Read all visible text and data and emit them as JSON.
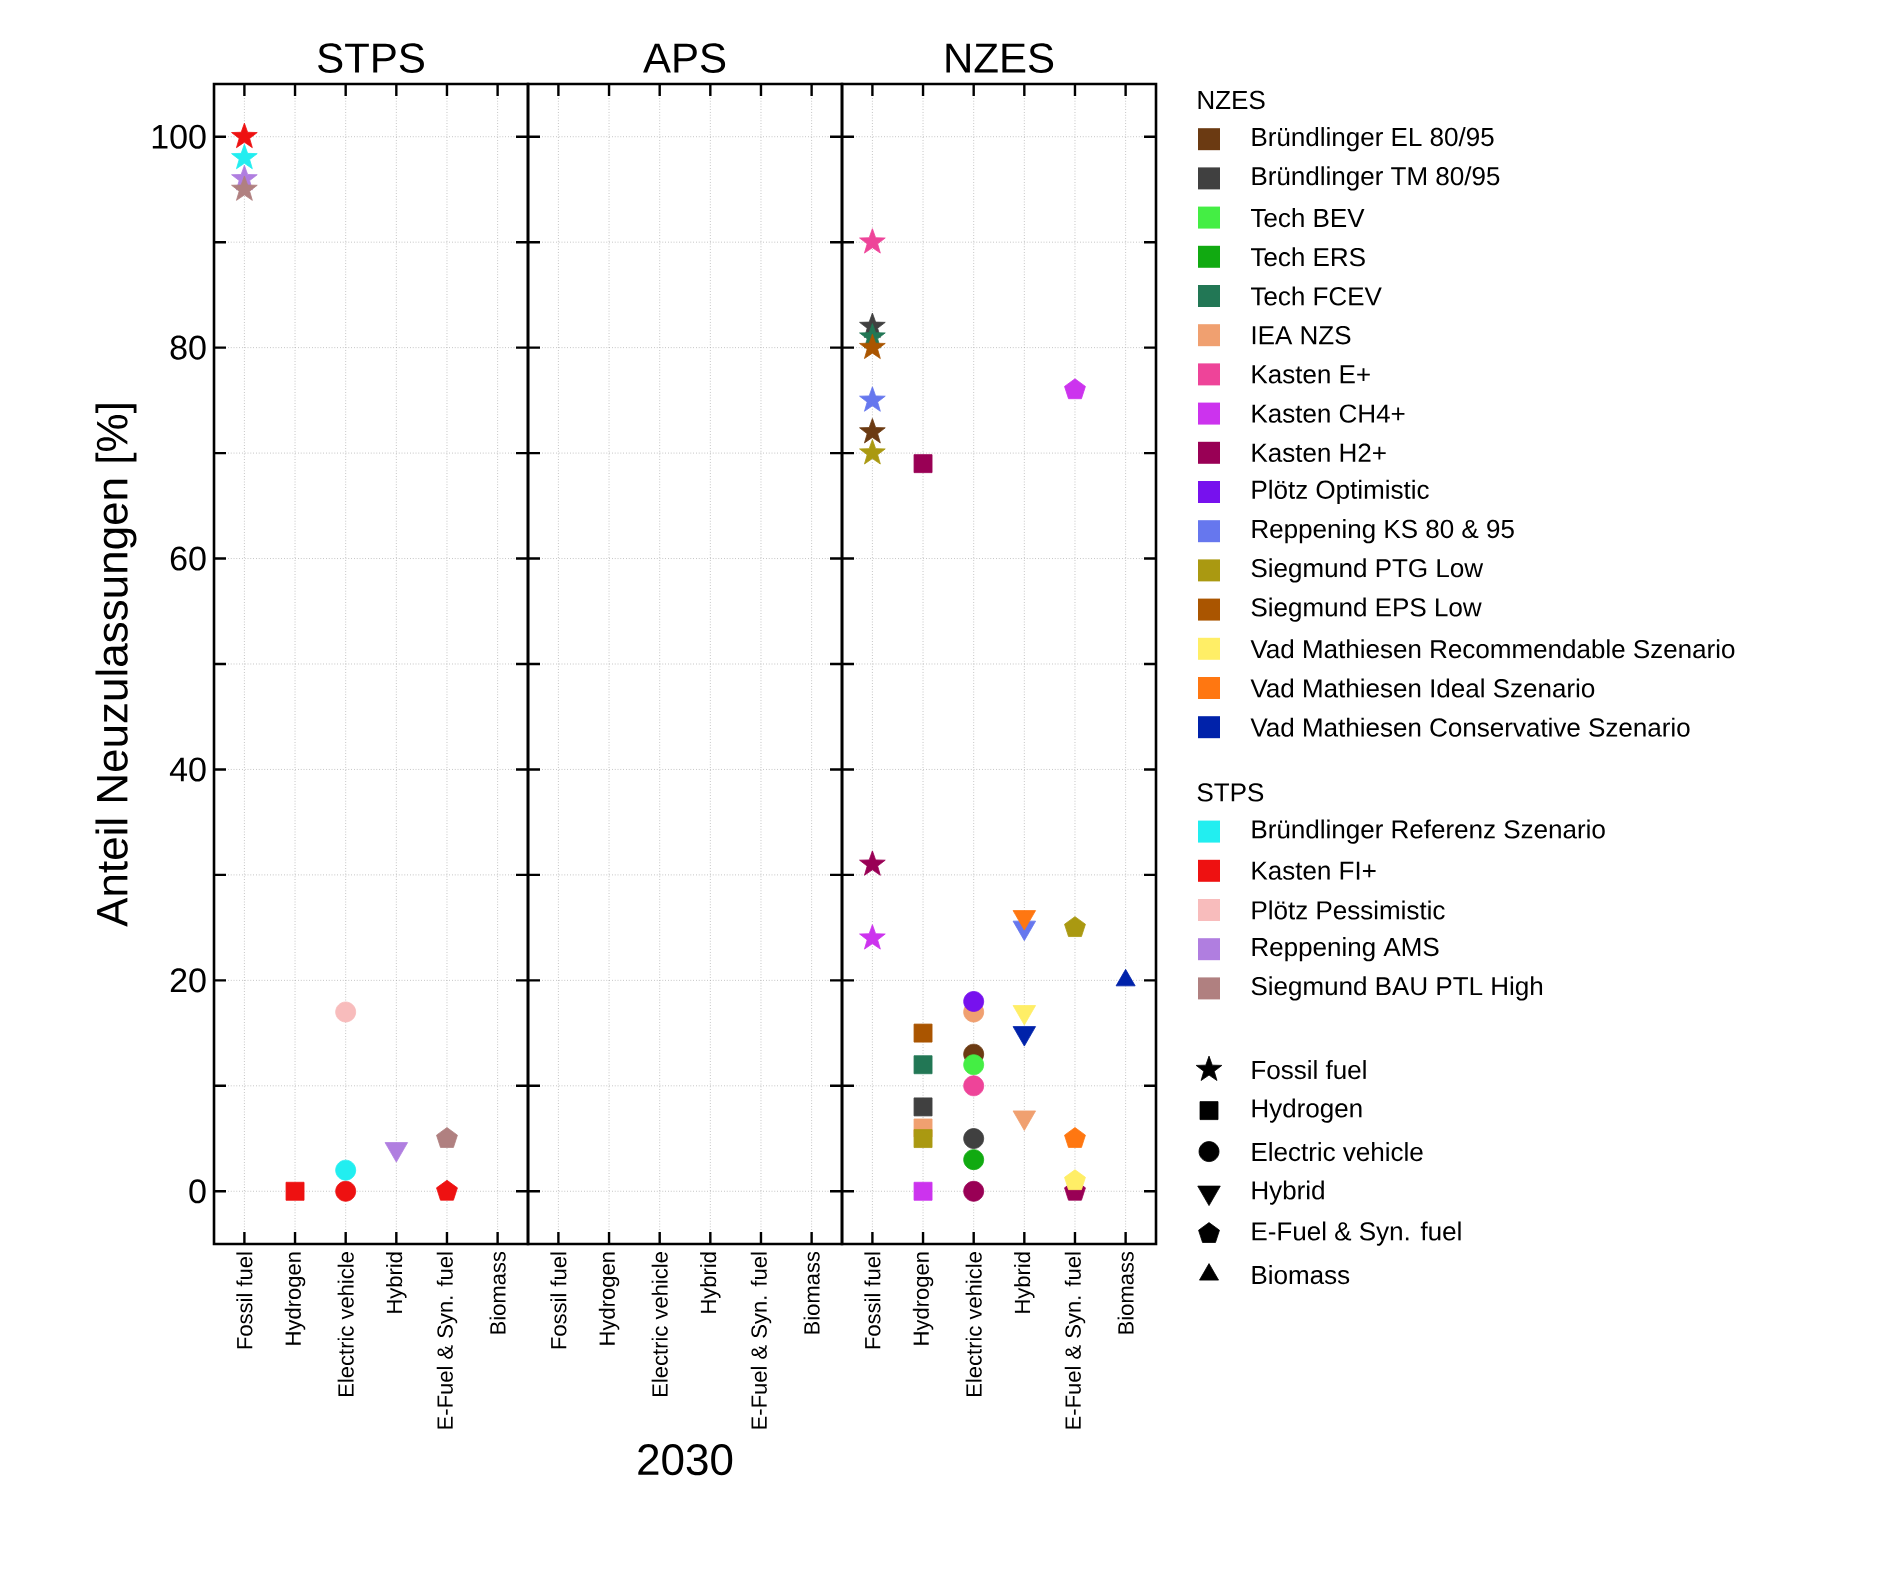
{
  "chart_data": [
    {
      "type": "scatter",
      "title": "STPS",
      "ylabel": "Anteil Neuzulassungen [%]",
      "legend": "right",
      "legend_title": "STPS",
      "grid": true,
      "categories": [
        "Fossil fuel",
        "Hydrogen",
        "Electric vehicle",
        "Hybrid",
        "E-Fuel & Syn. fuel",
        "Biomass"
      ],
      "ylim": [
        -5,
        105
      ],
      "yticks": [
        0,
        {
          "value": 10,
          "label": null
        },
        20,
        {
          "value": 30,
          "label": null
        },
        40,
        {
          "value": 50,
          "label": null
        },
        60,
        {
          "value": 70,
          "label": null
        },
        80,
        {
          "value": 90,
          "label": null
        },
        100
      ],
      "series": [
        {
          "name": "Bründlinger Referenz Szenario",
          "color": "#22eef0",
          "values": [
            98,
            null,
            2,
            null,
            null,
            null
          ]
        },
        {
          "name": "Kasten FI+",
          "color": "#ee1111",
          "values": [
            100,
            0,
            0,
            null,
            0,
            null
          ]
        },
        {
          "name": "Plötz Pessimistic",
          "color": "#f8bcbc",
          "values": [
            null,
            null,
            17,
            null,
            null,
            null
          ]
        },
        {
          "name": "Reppening AMS",
          "color": "#b07ee0",
          "values": [
            96,
            null,
            null,
            4,
            null,
            null
          ]
        },
        {
          "name": "Siegmund BAU PTL High",
          "color": "#b08080",
          "values": [
            95,
            null,
            null,
            null,
            5,
            null
          ]
        }
      ]
    },
    {
      "type": "scatter",
      "title": "APS",
      "xlabel": "2030",
      "grid": true,
      "tick_labels": "x",
      "categories": [
        "Fossil fuel",
        "Hydrogen",
        "Electric vehicle",
        "Hybrid",
        "E-Fuel & Syn. fuel",
        "Biomass"
      ],
      "ylim": [
        -5,
        105
      ],
      "yticks": [
        0,
        {
          "value": 10,
          "label": null
        },
        20,
        {
          "value": 30,
          "label": null
        },
        40,
        {
          "value": 50,
          "label": null
        },
        60,
        {
          "value": 70,
          "label": null
        },
        80,
        {
          "value": 90,
          "label": null
        },
        100
      ]
    },
    {
      "type": "scatter",
      "title": "NZES",
      "legend": "right",
      "legend_title": "NZES",
      "grid": true,
      "tick_labels": "x",
      "categories": [
        "Fossil fuel",
        "Hydrogen",
        "Electric vehicle",
        "Hybrid",
        "E-Fuel & Syn. fuel",
        "Biomass"
      ],
      "ylim": [
        -5,
        105
      ],
      "yticks": [
        0,
        {
          "value": 10,
          "label": null
        },
        20,
        {
          "value": 30,
          "label": null
        },
        40,
        {
          "value": 50,
          "label": null
        },
        60,
        {
          "value": 70,
          "label": null
        },
        80,
        {
          "value": 90,
          "label": null
        },
        100
      ],
      "series": [
        {
          "name": "Bründlinger EL 80/95",
          "color": "#6b3a12",
          "values": [
            72,
            null,
            13,
            null,
            null,
            null
          ]
        },
        {
          "name": "Bründlinger TM 80/95",
          "color": "#404040",
          "values": [
            82,
            8,
            5,
            null,
            null,
            null
          ]
        },
        {
          "name": "Tech BEV",
          "color": "#44ee44",
          "values": [
            null,
            null,
            12,
            null,
            null,
            null
          ]
        },
        {
          "name": "Tech ERS",
          "color": "#11aa11",
          "values": [
            null,
            null,
            3,
            null,
            null,
            null
          ]
        },
        {
          "name": "Tech FCEV",
          "color": "#227755",
          "values": [
            81,
            12,
            null,
            null,
            null,
            null
          ]
        },
        {
          "name": "IEA NZS",
          "color": "#f0a070",
          "values": [
            null,
            6,
            17,
            7,
            null,
            null
          ]
        },
        {
          "name": "Kasten E+",
          "color": "#ee4499",
          "values": [
            90,
            null,
            10,
            null,
            null,
            null
          ]
        },
        {
          "name": "Kasten CH4+",
          "color": "#cc33ee",
          "values": [
            24,
            0,
            null,
            null,
            76,
            null
          ]
        },
        {
          "name": "Kasten H2+",
          "color": "#990055",
          "values": [
            31,
            69,
            0,
            null,
            0,
            null
          ]
        },
        {
          "name": "Plötz Optimistic",
          "color": "#7711ee",
          "values": [
            null,
            null,
            18,
            null,
            null,
            null
          ]
        },
        {
          "name": "Reppening KS 80 & 95",
          "color": "#6677ee",
          "values": [
            75,
            null,
            null,
            25,
            null,
            null
          ]
        },
        {
          "name": "Siegmund PTG Low",
          "color": "#aa9911",
          "values": [
            70,
            5,
            null,
            null,
            25,
            null
          ]
        },
        {
          "name": "Siegmund EPS Low",
          "color": "#aa5500",
          "values": [
            80,
            15,
            null,
            null,
            null,
            null
          ]
        },
        {
          "name": "Vad Mathiesen Recommendable Szenario",
          "color": "#ffee66",
          "values": [
            null,
            null,
            null,
            17,
            1,
            null
          ]
        },
        {
          "name": "Vad Mathiesen Ideal Szenario",
          "color": "#ff7711",
          "values": [
            null,
            null,
            null,
            26,
            5,
            null
          ]
        },
        {
          "name": "Vad Mathiesen Conservative Szenario",
          "color": "#0022aa",
          "values": [
            null,
            null,
            null,
            15,
            null,
            20
          ]
        }
      ]
    }
  ]
}
